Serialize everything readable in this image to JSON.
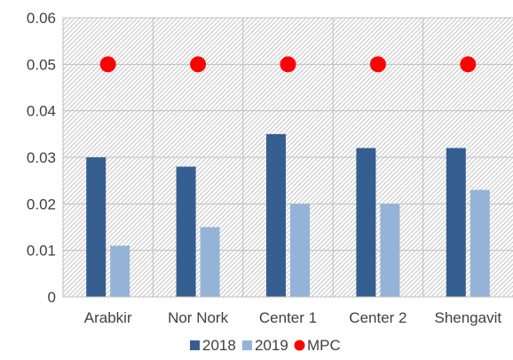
{
  "chart_data": {
    "type": "bar",
    "categories": [
      "Arabkir",
      "Nor Nork",
      "Center 1",
      "Center 2",
      "Shengavit"
    ],
    "series": [
      {
        "name": "2018",
        "values": [
          0.03,
          0.028,
          0.035,
          0.032,
          0.032
        ],
        "color": "#365f91"
      },
      {
        "name": "2019",
        "values": [
          0.011,
          0.015,
          0.02,
          0.02,
          0.023
        ],
        "color": "#95b3d7"
      }
    ],
    "reference": {
      "name": "MPC",
      "values": [
        0.05,
        0.05,
        0.05,
        0.05,
        0.05
      ],
      "color": "#ff0000",
      "marker": "circle"
    },
    "ylim": [
      0,
      0.06
    ],
    "yticks": [
      0,
      0.01,
      0.02,
      0.03,
      0.04,
      0.05,
      0.06
    ],
    "ytick_labels": [
      "0",
      "0.01",
      "0.02",
      "0.03",
      "0.04",
      "0.05",
      "0.06"
    ],
    "title": "",
    "xlabel": "",
    "ylabel": "",
    "grid": true,
    "legend_position": "bottom"
  }
}
